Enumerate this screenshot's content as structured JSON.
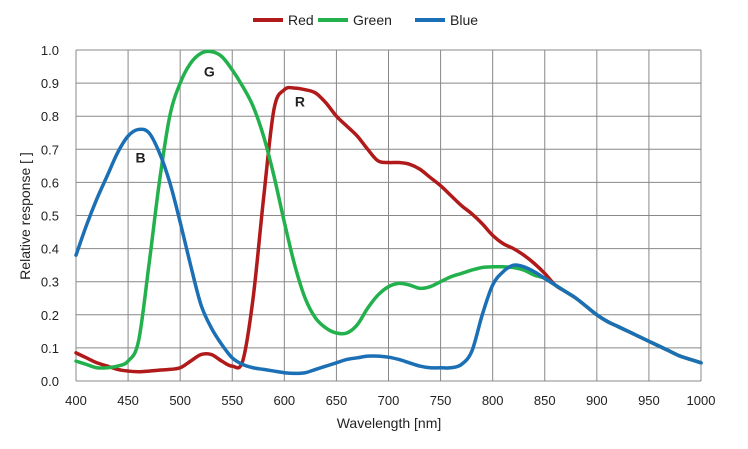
{
  "chart_data": {
    "type": "line",
    "xlabel": "Wavelength [nm]",
    "ylabel": "Relative response [ ]",
    "xlim": [
      400,
      1000
    ],
    "ylim": [
      0,
      1.0
    ],
    "x_ticks": [
      "400",
      "450",
      "500",
      "550",
      "600",
      "650",
      "700",
      "750",
      "800",
      "850",
      "900",
      "950",
      "1000"
    ],
    "y_ticks": [
      "0.0",
      "0.1",
      "0.2",
      "0.3",
      "0.4",
      "0.5",
      "0.6",
      "0.7",
      "0.8",
      "0.9",
      "1.0"
    ],
    "grid": true,
    "legend_position": "top",
    "x": [
      400,
      410,
      420,
      430,
      440,
      450,
      460,
      470,
      480,
      490,
      500,
      510,
      520,
      530,
      540,
      550,
      560,
      570,
      580,
      590,
      600,
      610,
      620,
      630,
      640,
      650,
      660,
      670,
      680,
      690,
      700,
      710,
      720,
      730,
      740,
      750,
      760,
      770,
      780,
      790,
      800,
      810,
      820,
      830,
      840,
      850,
      860,
      870,
      880,
      890,
      900,
      910,
      920,
      930,
      940,
      950,
      960,
      970,
      980,
      990,
      1000
    ],
    "series": [
      {
        "name": "Red",
        "color": "#b11a1a",
        "label": "R",
        "label_at": [
          615,
          0.83
        ],
        "values": [
          0.085,
          0.07,
          0.055,
          0.045,
          0.035,
          0.03,
          0.028,
          0.03,
          0.033,
          0.035,
          0.04,
          0.06,
          0.08,
          0.08,
          0.06,
          0.045,
          0.06,
          0.25,
          0.55,
          0.82,
          0.88,
          0.885,
          0.88,
          0.87,
          0.84,
          0.8,
          0.77,
          0.74,
          0.7,
          0.665,
          0.66,
          0.66,
          0.655,
          0.64,
          0.615,
          0.59,
          0.56,
          0.53,
          0.505,
          0.475,
          0.44,
          0.415,
          0.4,
          0.38,
          0.355,
          0.325,
          0.29,
          0.27,
          0.25,
          0.225,
          0.2,
          0.18,
          0.165,
          0.15,
          0.135,
          0.12,
          0.105,
          0.09,
          0.075,
          0.065,
          0.055
        ]
      },
      {
        "name": "Green",
        "color": "#22b14c",
        "label": "G",
        "label_at": [
          528,
          0.92
        ],
        "values": [
          0.06,
          0.05,
          0.04,
          0.04,
          0.045,
          0.06,
          0.12,
          0.35,
          0.6,
          0.8,
          0.9,
          0.96,
          0.99,
          0.995,
          0.98,
          0.94,
          0.89,
          0.83,
          0.74,
          0.62,
          0.48,
          0.35,
          0.25,
          0.19,
          0.16,
          0.145,
          0.145,
          0.17,
          0.22,
          0.26,
          0.285,
          0.295,
          0.29,
          0.28,
          0.285,
          0.3,
          0.315,
          0.325,
          0.335,
          0.343,
          0.345,
          0.345,
          0.343,
          0.335,
          0.32,
          0.31,
          0.29,
          0.27,
          0.25,
          0.225,
          0.2,
          0.18,
          0.165,
          0.15,
          0.135,
          0.12,
          0.105,
          0.09,
          0.075,
          0.065,
          0.055
        ]
      },
      {
        "name": "Blue",
        "color": "#1b6fb4",
        "label": "B",
        "label_at": [
          462,
          0.66
        ],
        "values": [
          0.38,
          0.47,
          0.55,
          0.62,
          0.69,
          0.74,
          0.76,
          0.75,
          0.69,
          0.6,
          0.48,
          0.35,
          0.23,
          0.16,
          0.11,
          0.07,
          0.05,
          0.04,
          0.035,
          0.03,
          0.025,
          0.023,
          0.025,
          0.035,
          0.045,
          0.055,
          0.065,
          0.07,
          0.075,
          0.075,
          0.072,
          0.065,
          0.055,
          0.045,
          0.04,
          0.04,
          0.04,
          0.05,
          0.09,
          0.2,
          0.29,
          0.33,
          0.35,
          0.345,
          0.33,
          0.31,
          0.29,
          0.27,
          0.25,
          0.225,
          0.2,
          0.18,
          0.165,
          0.15,
          0.135,
          0.12,
          0.105,
          0.09,
          0.075,
          0.065,
          0.055
        ]
      }
    ]
  }
}
